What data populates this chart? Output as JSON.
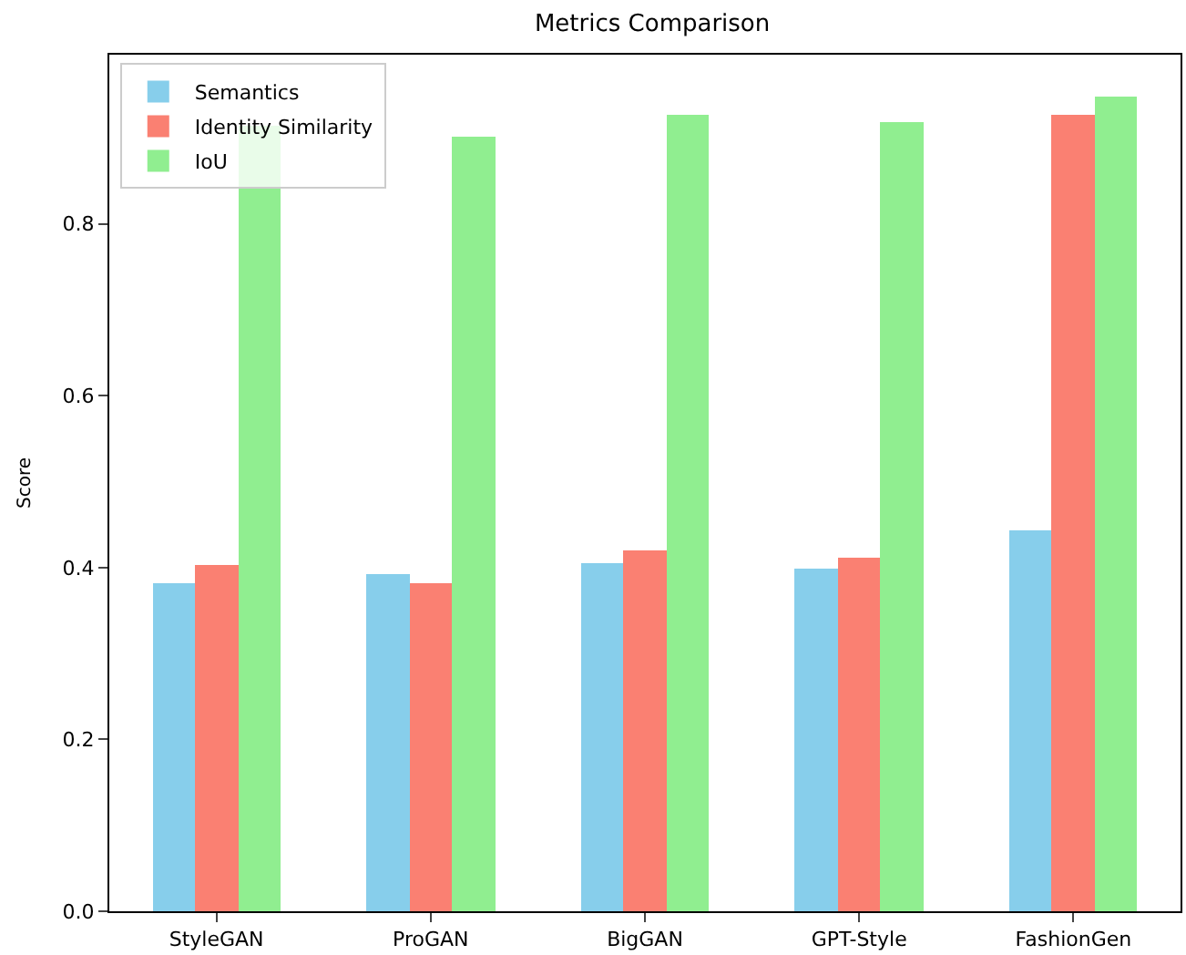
{
  "chart_data": {
    "type": "bar",
    "title": "Metrics Comparison",
    "ylabel": "Score",
    "categories": [
      "StyleGAN",
      "ProGAN",
      "BigGAN",
      "GPT-Style",
      "FashionGen"
    ],
    "series": [
      {
        "name": "Semantics",
        "color": "#87ceeb",
        "values": [
          0.381,
          0.392,
          0.406,
          0.398,
          0.444
        ]
      },
      {
        "name": "Identity Similarity",
        "color": "#fa8072",
        "values": [
          0.402,
          0.381,
          0.419,
          0.411,
          0.926
        ]
      },
      {
        "name": "IoU",
        "color": "#90ee90",
        "values": [
          0.914,
          0.901,
          0.926,
          0.918,
          0.949
        ]
      }
    ],
    "ylim": [
      0,
      0.997
    ],
    "yticks": [
      {
        "value": 0,
        "label": "0.0"
      },
      {
        "value": 0.2,
        "label": "0.2"
      },
      {
        "value": 0.4,
        "label": "0.4"
      },
      {
        "value": 0.6,
        "label": "0.6"
      },
      {
        "value": 0.8,
        "label": "0.8"
      }
    ],
    "legend": "top left"
  }
}
